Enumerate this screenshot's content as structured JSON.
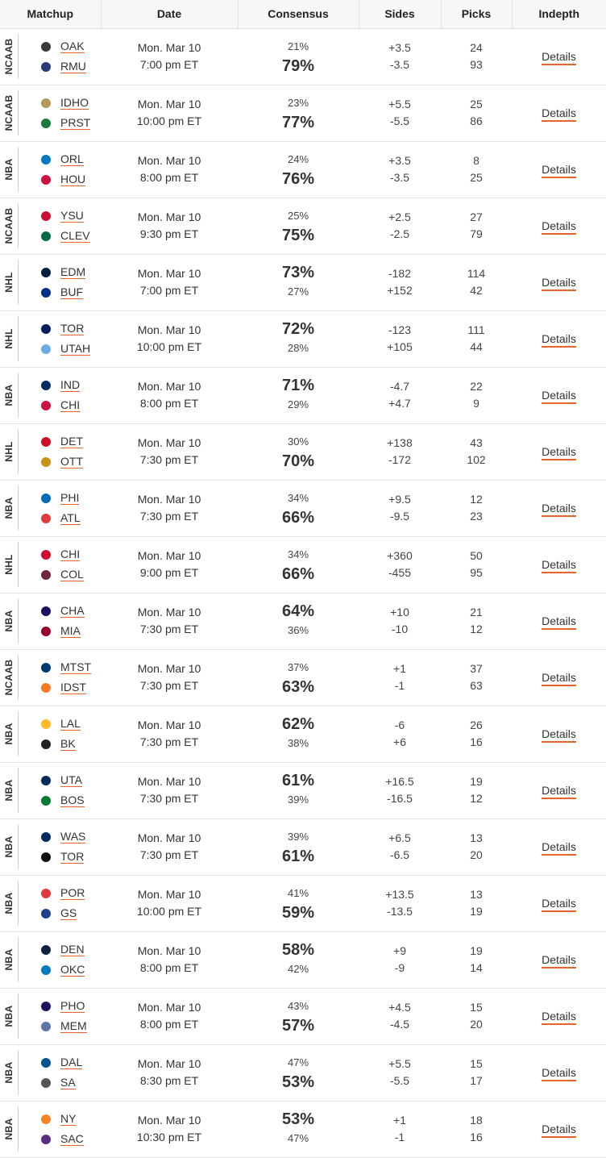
{
  "header": {
    "matchup": "Matchup",
    "date": "Date",
    "consensus": "Consensus",
    "sides": "Sides",
    "picks": "Picks",
    "indepth": "Indepth"
  },
  "details_label": "Details",
  "games": [
    {
      "league": "NCAAB",
      "away": {
        "abbr": "OAK",
        "color": "#3a3a3a"
      },
      "home": {
        "abbr": "RMU",
        "color": "#2a3a7a"
      },
      "day": "Mon. Mar 10",
      "time": "7:00 pm ET",
      "cons_away": "21%",
      "cons_home": "79%",
      "big": "home",
      "side_away": "+3.5",
      "side_home": "-3.5",
      "picks_away": "24",
      "picks_home": "93"
    },
    {
      "league": "NCAAB",
      "away": {
        "abbr": "IDHO",
        "color": "#b5985a"
      },
      "home": {
        "abbr": "PRST",
        "color": "#1a7a3a"
      },
      "day": "Mon. Mar 10",
      "time": "10:00 pm ET",
      "cons_away": "23%",
      "cons_home": "77%",
      "big": "home",
      "side_away": "+5.5",
      "side_home": "-5.5",
      "picks_away": "25",
      "picks_home": "86"
    },
    {
      "league": "NBA",
      "away": {
        "abbr": "ORL",
        "color": "#0077c0"
      },
      "home": {
        "abbr": "HOU",
        "color": "#ce1141"
      },
      "day": "Mon. Mar 10",
      "time": "8:00 pm ET",
      "cons_away": "24%",
      "cons_home": "76%",
      "big": "home",
      "side_away": "+3.5",
      "side_home": "-3.5",
      "picks_away": "8",
      "picks_home": "25"
    },
    {
      "league": "NCAAB",
      "away": {
        "abbr": "YSU",
        "color": "#c8102e"
      },
      "home": {
        "abbr": "CLEV",
        "color": "#006747"
      },
      "day": "Mon. Mar 10",
      "time": "9:30 pm ET",
      "cons_away": "25%",
      "cons_home": "75%",
      "big": "home",
      "side_away": "+2.5",
      "side_home": "-2.5",
      "picks_away": "27",
      "picks_home": "79"
    },
    {
      "league": "NHL",
      "away": {
        "abbr": "EDM",
        "color": "#041e42"
      },
      "home": {
        "abbr": "BUF",
        "color": "#003087"
      },
      "day": "Mon. Mar 10",
      "time": "7:00 pm ET",
      "cons_away": "73%",
      "cons_home": "27%",
      "big": "away",
      "side_away": "-182",
      "side_home": "+152",
      "picks_away": "114",
      "picks_home": "42"
    },
    {
      "league": "NHL",
      "away": {
        "abbr": "TOR",
        "color": "#00205b"
      },
      "home": {
        "abbr": "UTAH",
        "color": "#6cace4"
      },
      "day": "Mon. Mar 10",
      "time": "10:00 pm ET",
      "cons_away": "72%",
      "cons_home": "28%",
      "big": "away",
      "side_away": "-123",
      "side_home": "+105",
      "picks_away": "111",
      "picks_home": "44"
    },
    {
      "league": "NBA",
      "away": {
        "abbr": "IND",
        "color": "#002d62"
      },
      "home": {
        "abbr": "CHI",
        "color": "#ce1141"
      },
      "day": "Mon. Mar 10",
      "time": "8:00 pm ET",
      "cons_away": "71%",
      "cons_home": "29%",
      "big": "away",
      "side_away": "-4.7",
      "side_home": "+4.7",
      "picks_away": "22",
      "picks_home": "9"
    },
    {
      "league": "NHL",
      "away": {
        "abbr": "DET",
        "color": "#ce1126"
      },
      "home": {
        "abbr": "OTT",
        "color": "#c69214"
      },
      "day": "Mon. Mar 10",
      "time": "7:30 pm ET",
      "cons_away": "30%",
      "cons_home": "70%",
      "big": "home",
      "side_away": "+138",
      "side_home": "-172",
      "picks_away": "43",
      "picks_home": "102"
    },
    {
      "league": "NBA",
      "away": {
        "abbr": "PHI",
        "color": "#006bb6"
      },
      "home": {
        "abbr": "ATL",
        "color": "#e03a3e"
      },
      "day": "Mon. Mar 10",
      "time": "7:30 pm ET",
      "cons_away": "34%",
      "cons_home": "66%",
      "big": "home",
      "side_away": "+9.5",
      "side_home": "-9.5",
      "picks_away": "12",
      "picks_home": "23"
    },
    {
      "league": "NHL",
      "away": {
        "abbr": "CHI",
        "color": "#cf0a2c"
      },
      "home": {
        "abbr": "COL",
        "color": "#6f263d"
      },
      "day": "Mon. Mar 10",
      "time": "9:00 pm ET",
      "cons_away": "34%",
      "cons_home": "66%",
      "big": "home",
      "side_away": "+360",
      "side_home": "-455",
      "picks_away": "50",
      "picks_home": "95"
    },
    {
      "league": "NBA",
      "away": {
        "abbr": "CHA",
        "color": "#1d1160"
      },
      "home": {
        "abbr": "MIA",
        "color": "#98002e"
      },
      "day": "Mon. Mar 10",
      "time": "7:30 pm ET",
      "cons_away": "64%",
      "cons_home": "36%",
      "big": "away",
      "side_away": "+10",
      "side_home": "-10",
      "picks_away": "21",
      "picks_home": "12"
    },
    {
      "league": "NCAAB",
      "away": {
        "abbr": "MTST",
        "color": "#003875"
      },
      "home": {
        "abbr": "IDST",
        "color": "#f47920"
      },
      "day": "Mon. Mar 10",
      "time": "7:30 pm ET",
      "cons_away": "37%",
      "cons_home": "63%",
      "big": "home",
      "side_away": "+1",
      "side_home": "-1",
      "picks_away": "37",
      "picks_home": "63"
    },
    {
      "league": "NBA",
      "away": {
        "abbr": "LAL",
        "color": "#fdb927"
      },
      "home": {
        "abbr": "BK",
        "color": "#222222"
      },
      "day": "Mon. Mar 10",
      "time": "7:30 pm ET",
      "cons_away": "62%",
      "cons_home": "38%",
      "big": "away",
      "side_away": "-6",
      "side_home": "+6",
      "picks_away": "26",
      "picks_home": "16"
    },
    {
      "league": "NBA",
      "away": {
        "abbr": "UTA",
        "color": "#002b5c"
      },
      "home": {
        "abbr": "BOS",
        "color": "#007a33"
      },
      "day": "Mon. Mar 10",
      "time": "7:30 pm ET",
      "cons_away": "61%",
      "cons_home": "39%",
      "big": "away",
      "side_away": "+16.5",
      "side_home": "-16.5",
      "picks_away": "19",
      "picks_home": "12"
    },
    {
      "league": "NBA",
      "away": {
        "abbr": "WAS",
        "color": "#002b5c"
      },
      "home": {
        "abbr": "TOR",
        "color": "#111111"
      },
      "day": "Mon. Mar 10",
      "time": "7:30 pm ET",
      "cons_away": "39%",
      "cons_home": "61%",
      "big": "home",
      "side_away": "+6.5",
      "side_home": "-6.5",
      "picks_away": "13",
      "picks_home": "20"
    },
    {
      "league": "NBA",
      "away": {
        "abbr": "POR",
        "color": "#e03a3e"
      },
      "home": {
        "abbr": "GS",
        "color": "#1d428a"
      },
      "day": "Mon. Mar 10",
      "time": "10:00 pm ET",
      "cons_away": "41%",
      "cons_home": "59%",
      "big": "home",
      "side_away": "+13.5",
      "side_home": "-13.5",
      "picks_away": "13",
      "picks_home": "19"
    },
    {
      "league": "NBA",
      "away": {
        "abbr": "DEN",
        "color": "#0e2240"
      },
      "home": {
        "abbr": "OKC",
        "color": "#007ac1"
      },
      "day": "Mon. Mar 10",
      "time": "8:00 pm ET",
      "cons_away": "58%",
      "cons_home": "42%",
      "big": "away",
      "side_away": "+9",
      "side_home": "-9",
      "picks_away": "19",
      "picks_home": "14"
    },
    {
      "league": "NBA",
      "away": {
        "abbr": "PHO",
        "color": "#1d1160"
      },
      "home": {
        "abbr": "MEM",
        "color": "#5d76a9"
      },
      "day": "Mon. Mar 10",
      "time": "8:00 pm ET",
      "cons_away": "43%",
      "cons_home": "57%",
      "big": "home",
      "side_away": "+4.5",
      "side_home": "-4.5",
      "picks_away": "15",
      "picks_home": "20"
    },
    {
      "league": "NBA",
      "away": {
        "abbr": "DAL",
        "color": "#00538c"
      },
      "home": {
        "abbr": "SA",
        "color": "#555555"
      },
      "day": "Mon. Mar 10",
      "time": "8:30 pm ET",
      "cons_away": "47%",
      "cons_home": "53%",
      "big": "home",
      "side_away": "+5.5",
      "side_home": "-5.5",
      "picks_away": "15",
      "picks_home": "17"
    },
    {
      "league": "NBA",
      "away": {
        "abbr": "NY",
        "color": "#f58426"
      },
      "home": {
        "abbr": "SAC",
        "color": "#5a2d81"
      },
      "day": "Mon. Mar 10",
      "time": "10:30 pm ET",
      "cons_away": "53%",
      "cons_home": "47%",
      "big": "away",
      "side_away": "+1",
      "side_home": "-1",
      "picks_away": "18",
      "picks_home": "16"
    }
  ],
  "colors": {
    "accent": "#e8632b",
    "header_bg": "#f7f7f7",
    "divider": "#e3e3e3"
  }
}
